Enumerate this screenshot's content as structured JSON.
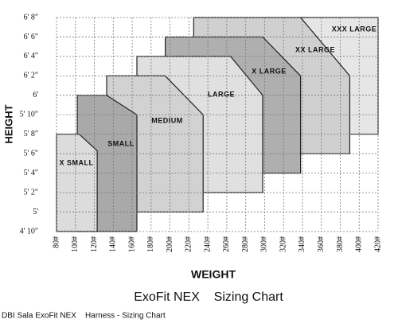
{
  "chart_data": {
    "type": "polygon",
    "title": "ExoFit NEX    Sizing Chart",
    "footer": "DBI Sala ExoFit NEX    Harness - Sizing Chart",
    "x_label": "WEIGHT",
    "y_label": "HEIGHT",
    "grid": true,
    "xlim": [
      80,
      420
    ],
    "ylim": [
      58,
      80
    ],
    "xticks": [
      {
        "value": 80,
        "label": "80#"
      },
      {
        "value": 100,
        "label": "100#"
      },
      {
        "value": 120,
        "label": "120#"
      },
      {
        "value": 140,
        "label": "140#"
      },
      {
        "value": 160,
        "label": "160#"
      },
      {
        "value": 180,
        "label": "180#"
      },
      {
        "value": 200,
        "label": "200#"
      },
      {
        "value": 220,
        "label": "220#"
      },
      {
        "value": 240,
        "label": "240#"
      },
      {
        "value": 260,
        "label": "260#"
      },
      {
        "value": 280,
        "label": "280#"
      },
      {
        "value": 300,
        "label": "300#"
      },
      {
        "value": 320,
        "label": "320#"
      },
      {
        "value": 340,
        "label": "340#"
      },
      {
        "value": 360,
        "label": "360#"
      },
      {
        "value": 380,
        "label": "380#"
      },
      {
        "value": 400,
        "label": "400#"
      },
      {
        "value": 420,
        "label": "420#"
      }
    ],
    "yticks": [
      {
        "value": 58,
        "label": "4' 10\""
      },
      {
        "value": 60,
        "label": "5'"
      },
      {
        "value": 62,
        "label": "5' 2\""
      },
      {
        "value": 64,
        "label": "5' 4\""
      },
      {
        "value": 66,
        "label": "5' 6\""
      },
      {
        "value": 68,
        "label": "5' 8\""
      },
      {
        "value": 70,
        "label": "5' 10\""
      },
      {
        "value": 72,
        "label": "6'"
      },
      {
        "value": 74,
        "label": "6' 2\""
      },
      {
        "value": 76,
        "label": "6' 4\""
      },
      {
        "value": 78,
        "label": "6' 6\""
      },
      {
        "value": 80,
        "label": "6' 8\""
      }
    ],
    "series": [
      {
        "name": "X SMALL",
        "color": "#dcdcdc",
        "points": [
          [
            80,
            58
          ],
          [
            80,
            68
          ],
          [
            104,
            68
          ],
          [
            123,
            66.3
          ],
          [
            123,
            58
          ]
        ]
      },
      {
        "name": "SMALL",
        "color": "#a9a9a9",
        "points": [
          [
            102,
            58
          ],
          [
            102,
            72
          ],
          [
            133,
            72
          ],
          [
            165,
            70
          ],
          [
            165,
            58
          ]
        ]
      },
      {
        "name": "MEDIUM",
        "color": "#d2d2d2",
        "points": [
          [
            133,
            60
          ],
          [
            133,
            74
          ],
          [
            195,
            74
          ],
          [
            235,
            70
          ],
          [
            235,
            60
          ]
        ]
      },
      {
        "name": "LARGE",
        "color": "#e0e0e0",
        "points": [
          [
            165,
            62
          ],
          [
            165,
            76
          ],
          [
            264,
            76
          ],
          [
            298,
            72
          ],
          [
            298,
            62
          ]
        ]
      },
      {
        "name": "X LARGE",
        "color": "#afafaf",
        "points": [
          [
            195,
            64
          ],
          [
            195,
            78
          ],
          [
            298,
            78
          ],
          [
            338,
            74
          ],
          [
            338,
            64
          ]
        ]
      },
      {
        "name": "XX LARGE",
        "color": "#d0d0d0",
        "points": [
          [
            225,
            66
          ],
          [
            225,
            80
          ],
          [
            338,
            80
          ],
          [
            390,
            74
          ],
          [
            390,
            66
          ]
        ]
      },
      {
        "name": "XXX LARGE",
        "color": "#e6e6e6",
        "points": [
          [
            338,
            68
          ],
          [
            338,
            80
          ],
          [
            420,
            80
          ],
          [
            420,
            68
          ]
        ]
      }
    ]
  }
}
